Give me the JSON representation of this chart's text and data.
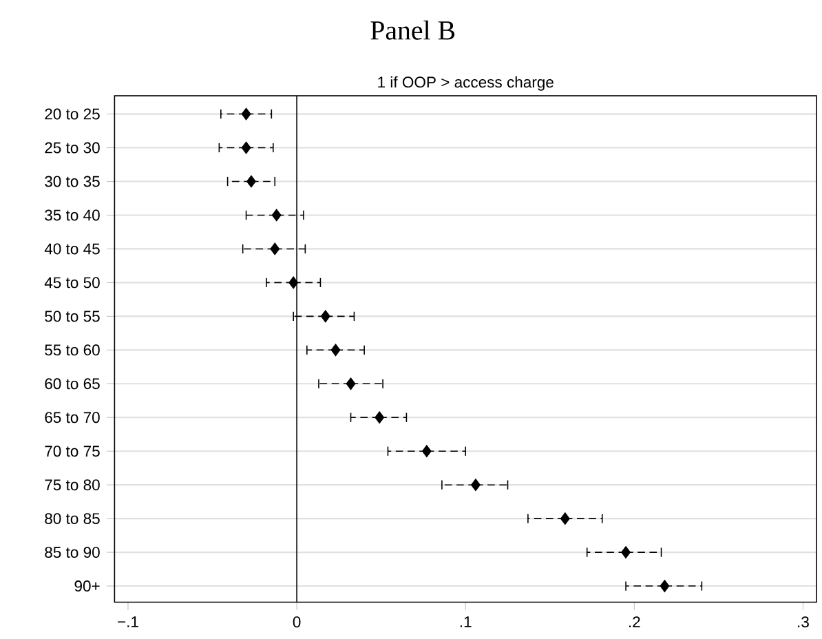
{
  "chart_data": {
    "type": "scatter",
    "title": "Panel B",
    "subtitle": "1 if OOP > access charge",
    "orientation": "horizontal",
    "categories": [
      "20 to 25",
      "25 to 30",
      "30 to 35",
      "35 to 40",
      "40 to 45",
      "45 to 50",
      "50 to 55",
      "55 to 60",
      "60 to 65",
      "65 to 70",
      "70 to 75",
      "75 to 80",
      "80 to 85",
      "85 to 90",
      "90+"
    ],
    "color": "#000000",
    "values": [
      -0.03,
      -0.03,
      -0.027,
      -0.012,
      -0.013,
      -0.002,
      0.017,
      0.023,
      0.032,
      0.049,
      0.077,
      0.106,
      0.159,
      0.195,
      0.218
    ],
    "errors": [
      [
        -0.045,
        -0.015
      ],
      [
        -0.046,
        -0.014
      ],
      [
        -0.041,
        -0.013
      ],
      [
        -0.03,
        0.004
      ],
      [
        -0.032,
        0.005
      ],
      [
        -0.018,
        0.014
      ],
      [
        -0.002,
        0.034
      ],
      [
        0.006,
        0.04
      ],
      [
        0.013,
        0.051
      ],
      [
        0.032,
        0.065
      ],
      [
        0.054,
        0.1
      ],
      [
        0.086,
        0.125
      ],
      [
        0.137,
        0.181
      ],
      [
        0.172,
        0.216
      ],
      [
        0.195,
        0.24
      ]
    ],
    "xlim": [
      -0.108,
      0.308
    ],
    "xticks": [
      {
        "value": -0.1,
        "label": "−.1"
      },
      0,
      {
        "value": 0.1,
        "label": ".1"
      },
      {
        "value": 0.2,
        "label": ".2"
      },
      {
        "value": 0.3,
        "label": ".3"
      }
    ],
    "ref_lines": [
      {
        "axis": "x",
        "value": 0,
        "color": "#000000"
      }
    ],
    "grid": "y",
    "marker": "diamond"
  }
}
